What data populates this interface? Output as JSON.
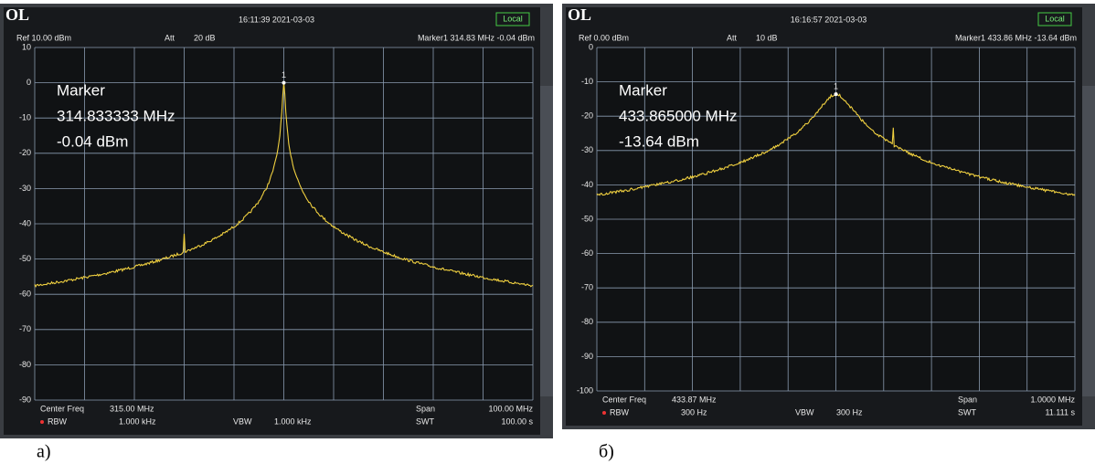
{
  "panels": [
    {
      "logo": "OL",
      "time": "16:11:39 2021-03-03",
      "status": "Local",
      "ref": "Ref 10.00 dBm",
      "att_label": "Att",
      "att_value": "20 dB",
      "marker_readout": "Marker1  314.83 MHz  -0.04 dBm",
      "y_labels": [
        "10",
        "0",
        "-10",
        "-20",
        "-30",
        "-40",
        "-50",
        "-60",
        "-70",
        "-80",
        "-90"
      ],
      "marker": {
        "title": "Marker",
        "freq": "314.833333 MHz",
        "level": "-0.04 dBm",
        "label": "1"
      },
      "footer": {
        "center_label": "Center Freq",
        "center_value": "315.00 MHz",
        "rbw_label": "RBW",
        "rbw_value": "1.000 kHz",
        "vbw_label": "VBW",
        "vbw_value": "1.000 kHz",
        "span_label": "Span",
        "span_value": "100.00 MHz",
        "swt_label": "SWT",
        "swt_value": "100.00 s"
      },
      "caption": "а)"
    },
    {
      "logo": "OL",
      "time": "16:16:57 2021-03-03",
      "status": "Local",
      "ref": "Ref 0.00 dBm",
      "att_label": "Att",
      "att_value": "10 dB",
      "marker_readout": "Marker1  433.86 MHz  -13.64 dBm",
      "y_labels": [
        "0",
        "-10",
        "-20",
        "-30",
        "-40",
        "-50",
        "-60",
        "-70",
        "-80",
        "-90",
        "-100"
      ],
      "marker": {
        "title": "Marker",
        "freq": "433.865000 MHz",
        "level": "-13.64 dBm",
        "label": "1"
      },
      "footer": {
        "center_label": "Center Freq",
        "center_value": "433.87 MHz",
        "rbw_label": "RBW",
        "rbw_value": "300 Hz",
        "vbw_label": "VBW",
        "vbw_value": "300 Hz",
        "span_label": "Span",
        "span_value": "1.0000 MHz",
        "swt_label": "SWT",
        "swt_value": "11.111 s"
      },
      "caption": "б)"
    }
  ]
}
